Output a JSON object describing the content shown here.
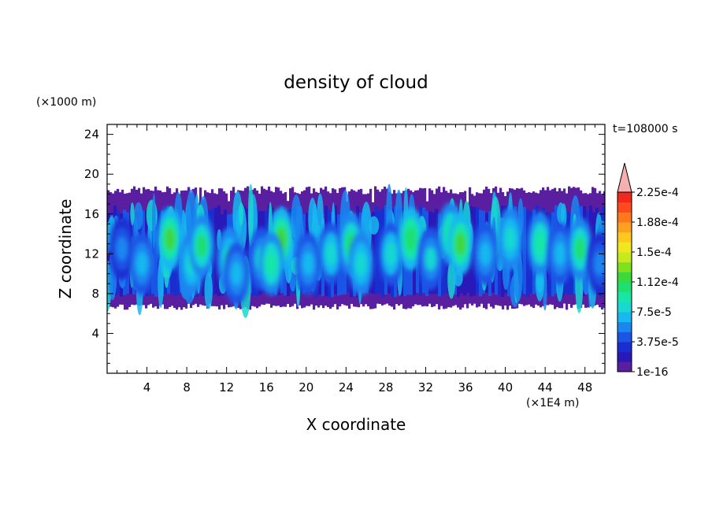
{
  "chart_data": {
    "type": "heatmap",
    "title": "density of cloud",
    "xlabel": "X coordinate",
    "ylabel": "Z coordinate",
    "x_unit": "(×1E4 m)",
    "y_unit": "(×1000 m)",
    "time_label": "t=108000 s",
    "xlim": [
      0,
      50
    ],
    "ylim": [
      0,
      25
    ],
    "x_ticks": [
      4,
      8,
      12,
      16,
      20,
      24,
      28,
      32,
      36,
      40,
      44,
      48
    ],
    "y_ticks": [
      4,
      8,
      12,
      16,
      20,
      24
    ],
    "colorbar": {
      "levels": [
        "1e-16",
        "3.75e-5",
        "7.5e-5",
        "1.12e-4",
        "1.5e-4",
        "1.88e-4",
        "2.25e-4"
      ],
      "colors": [
        "#5a1fa0",
        "#2a18b8",
        "#1a2ed0",
        "#1a55e6",
        "#1a86f0",
        "#18b8f0",
        "#19d8d0",
        "#18e6a6",
        "#1ee070",
        "#3cd83c",
        "#7ee01e",
        "#c6ea1e",
        "#f0e81e",
        "#ffc81e",
        "#ffa01e",
        "#ff781e",
        "#ff4a1e",
        "#f0281e",
        "#f4b0b0"
      ],
      "extend": "max"
    },
    "cloud_layer": {
      "base_z": 7,
      "top_z": 18
    },
    "cells": [
      {
        "x": 1.5,
        "z": 12.5,
        "v": 8e-05
      },
      {
        "x": 3.5,
        "z": 11.0,
        "v": 9.5e-05
      },
      {
        "x": 6.3,
        "z": 13.5,
        "v": 0.000165
      },
      {
        "x": 8.5,
        "z": 11.0,
        "v": 0.00012
      },
      {
        "x": 9.5,
        "z": 12.8,
        "v": 0.00015
      },
      {
        "x": 12.3,
        "z": 11.5,
        "v": 0.000125
      },
      {
        "x": 13.0,
        "z": 10.0,
        "v": 0.0001
      },
      {
        "x": 15.5,
        "z": 11.5,
        "v": 0.000105
      },
      {
        "x": 17.5,
        "z": 13.5,
        "v": 0.00017
      },
      {
        "x": 16.5,
        "z": 11.0,
        "v": 0.00013
      },
      {
        "x": 20.2,
        "z": 11.0,
        "v": 0.0001
      },
      {
        "x": 22.5,
        "z": 12.0,
        "v": 0.000115
      },
      {
        "x": 24.5,
        "z": 13.0,
        "v": 0.000145
      },
      {
        "x": 25.5,
        "z": 11.0,
        "v": 0.00012
      },
      {
        "x": 28.5,
        "z": 12.0,
        "v": 0.000115
      },
      {
        "x": 30.5,
        "z": 13.5,
        "v": 0.000155
      },
      {
        "x": 32.5,
        "z": 11.5,
        "v": 0.000105
      },
      {
        "x": 34.5,
        "z": 14.0,
        "v": 0.00013
      },
      {
        "x": 35.5,
        "z": 13.0,
        "v": 0.00017
      },
      {
        "x": 38.0,
        "z": 12.0,
        "v": 9.5e-05
      },
      {
        "x": 40.5,
        "z": 13.5,
        "v": 0.00012
      },
      {
        "x": 43.5,
        "z": 13.0,
        "v": 0.000135
      },
      {
        "x": 45.5,
        "z": 12.0,
        "v": 0.0001
      },
      {
        "x": 47.5,
        "z": 12.5,
        "v": 0.00015
      },
      {
        "x": 49.5,
        "z": 11.0,
        "v": 8e-05
      }
    ]
  }
}
